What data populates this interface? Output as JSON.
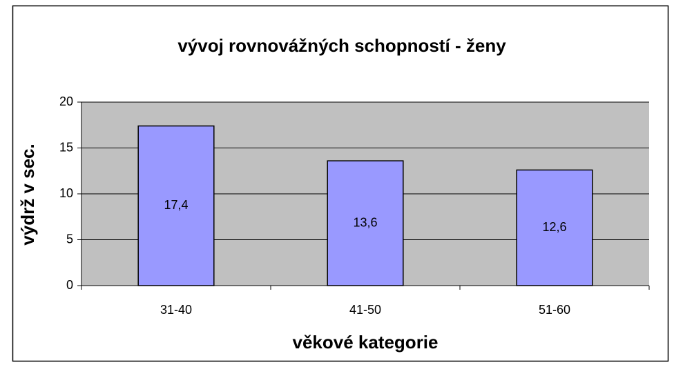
{
  "chart_data": {
    "type": "bar",
    "title": "vývoj rovnovážných schopností - ženy",
    "x_label": "věkové kategorie",
    "y_label": "výdrž v sec.",
    "categories": [
      "31-40",
      "41-50",
      "51-60"
    ],
    "values": [
      17.4,
      13.6,
      12.6
    ],
    "value_labels": [
      "17,4",
      "13,6",
      "12,6"
    ],
    "color": "#9999ff",
    "plot_background": "#c0c0c0",
    "ylim": [
      0,
      20
    ],
    "yticks": [
      0,
      5,
      10,
      15,
      20
    ],
    "grid": true
  }
}
